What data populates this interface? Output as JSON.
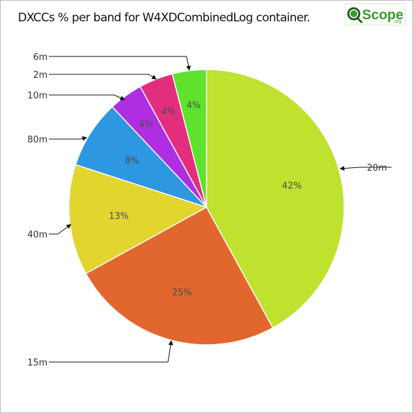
{
  "chart_data": {
    "type": "pie",
    "title": "DXCCs % per band for W4XDCombinedLog container.",
    "slices": [
      {
        "label": "20m",
        "value": 42,
        "value_label": "42%",
        "color": "#bfe22e"
      },
      {
        "label": "15m",
        "value": 25,
        "value_label": "25%",
        "color": "#e2672e"
      },
      {
        "label": "40m",
        "value": 13,
        "value_label": "13%",
        "color": "#e2d52e"
      },
      {
        "label": "80m",
        "value": 8,
        "value_label": "8%",
        "color": "#2e97e2"
      },
      {
        "label": "10m",
        "value": 4,
        "value_label": "4%",
        "color": "#b02ee2"
      },
      {
        "label": "2m",
        "value": 4,
        "value_label": "4%",
        "color": "#e22e7d"
      },
      {
        "label": "6m",
        "value": 4,
        "value_label": "4%",
        "color": "#5ee22e"
      }
    ],
    "start_angle": "12 o'clock",
    "direction": "clockwise",
    "legend": "none"
  },
  "logo": {
    "text": "Scope",
    "suffix": ".org",
    "colors": {
      "green": "#3a9a2a",
      "dark": "#1f5e18"
    }
  }
}
